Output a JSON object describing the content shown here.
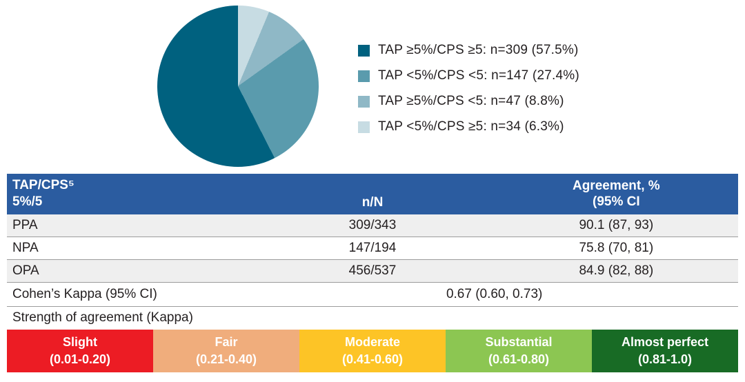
{
  "chart_data": [
    {
      "type": "pie",
      "title": "",
      "start_angle_deg": 0,
      "direction": "clockwise",
      "legend_position": "right",
      "segments": [
        {
          "label": "TAP <5%/CPS ≥5",
          "n": 34,
          "percent": 6.3,
          "color": "#C7DCE3"
        },
        {
          "label": "TAP ≥5%/CPS <5",
          "n": 47,
          "percent": 8.8,
          "color": "#8FB8C6"
        },
        {
          "label": "TAP <5%/CPS <5",
          "n": 147,
          "percent": 27.4,
          "color": "#5A9BAD"
        },
        {
          "label": "TAP ≥5%/CPS ≥5",
          "n": 309,
          "percent": 57.5,
          "color": "#00617F"
        }
      ]
    },
    {
      "type": "table",
      "columns": [
        "TAP/CPS⁵ 5%/5",
        "n/N",
        "Agreement, % (95% CI"
      ],
      "rows": [
        [
          "PPA",
          "309/343",
          "90.1 (87, 93)"
        ],
        [
          "NPA",
          "147/194",
          "75.8 (70, 81)"
        ],
        [
          "OPA",
          "456/537",
          "84.9 (82, 88)"
        ],
        [
          "Cohen’s Kappa (95% CI)",
          "0.67 (0.60, 0.73)",
          ""
        ]
      ]
    }
  ],
  "legend": {
    "items": [
      {
        "label": "TAP ≥5%/CPS ≥5: n=309 (57.5%)",
        "color": "#00617F"
      },
      {
        "label": "TAP <5%/CPS <5: n=147 (27.4%)",
        "color": "#5A9BAD"
      },
      {
        "label": "TAP ≥5%/CPS <5: n=47 (8.8%)",
        "color": "#8FB8C6"
      },
      {
        "label": "TAP <5%/CPS ≥5: n=34 (6.3%)",
        "color": "#C7DCE3"
      }
    ]
  },
  "table": {
    "header": {
      "col1_line1": "TAP/CPS⁵",
      "col1_line2": "5%/5",
      "col2": "n/N",
      "col3_line1": "Agreement, %",
      "col3_line2": "(95% CI"
    },
    "rows": [
      {
        "label": "PPA",
        "nN": "309/343",
        "agreement": "90.1 (87, 93)"
      },
      {
        "label": "NPA",
        "nN": "147/194",
        "agreement": "75.8 (70, 81)"
      },
      {
        "label": "OPA",
        "nN": "456/537",
        "agreement": "84.9 (82, 88)"
      }
    ],
    "kappa_label": "Cohen’s Kappa (95% CI)",
    "kappa_value": "0.67 (0.60, 0.73)",
    "strength_label": "Strength of agreement (Kappa)"
  },
  "scale": {
    "segments": [
      {
        "name": "Slight",
        "range": "(0.01-0.20)",
        "color": "#EC1C24"
      },
      {
        "name": "Fair",
        "range": "(0.21-0.40)",
        "color": "#F0AD7C"
      },
      {
        "name": "Moderate",
        "range": "(0.41-0.60)",
        "color": "#FDC426"
      },
      {
        "name": "Substantial",
        "range": "(0.61-0.80)",
        "color": "#8CC652"
      },
      {
        "name": "Almost perfect",
        "range": "(0.81-1.0)",
        "color": "#186B25"
      }
    ]
  },
  "colors": {
    "header_bg": "#2B5CA0",
    "row_alt_bg": "#EFEFEF",
    "text": "#231F20"
  }
}
